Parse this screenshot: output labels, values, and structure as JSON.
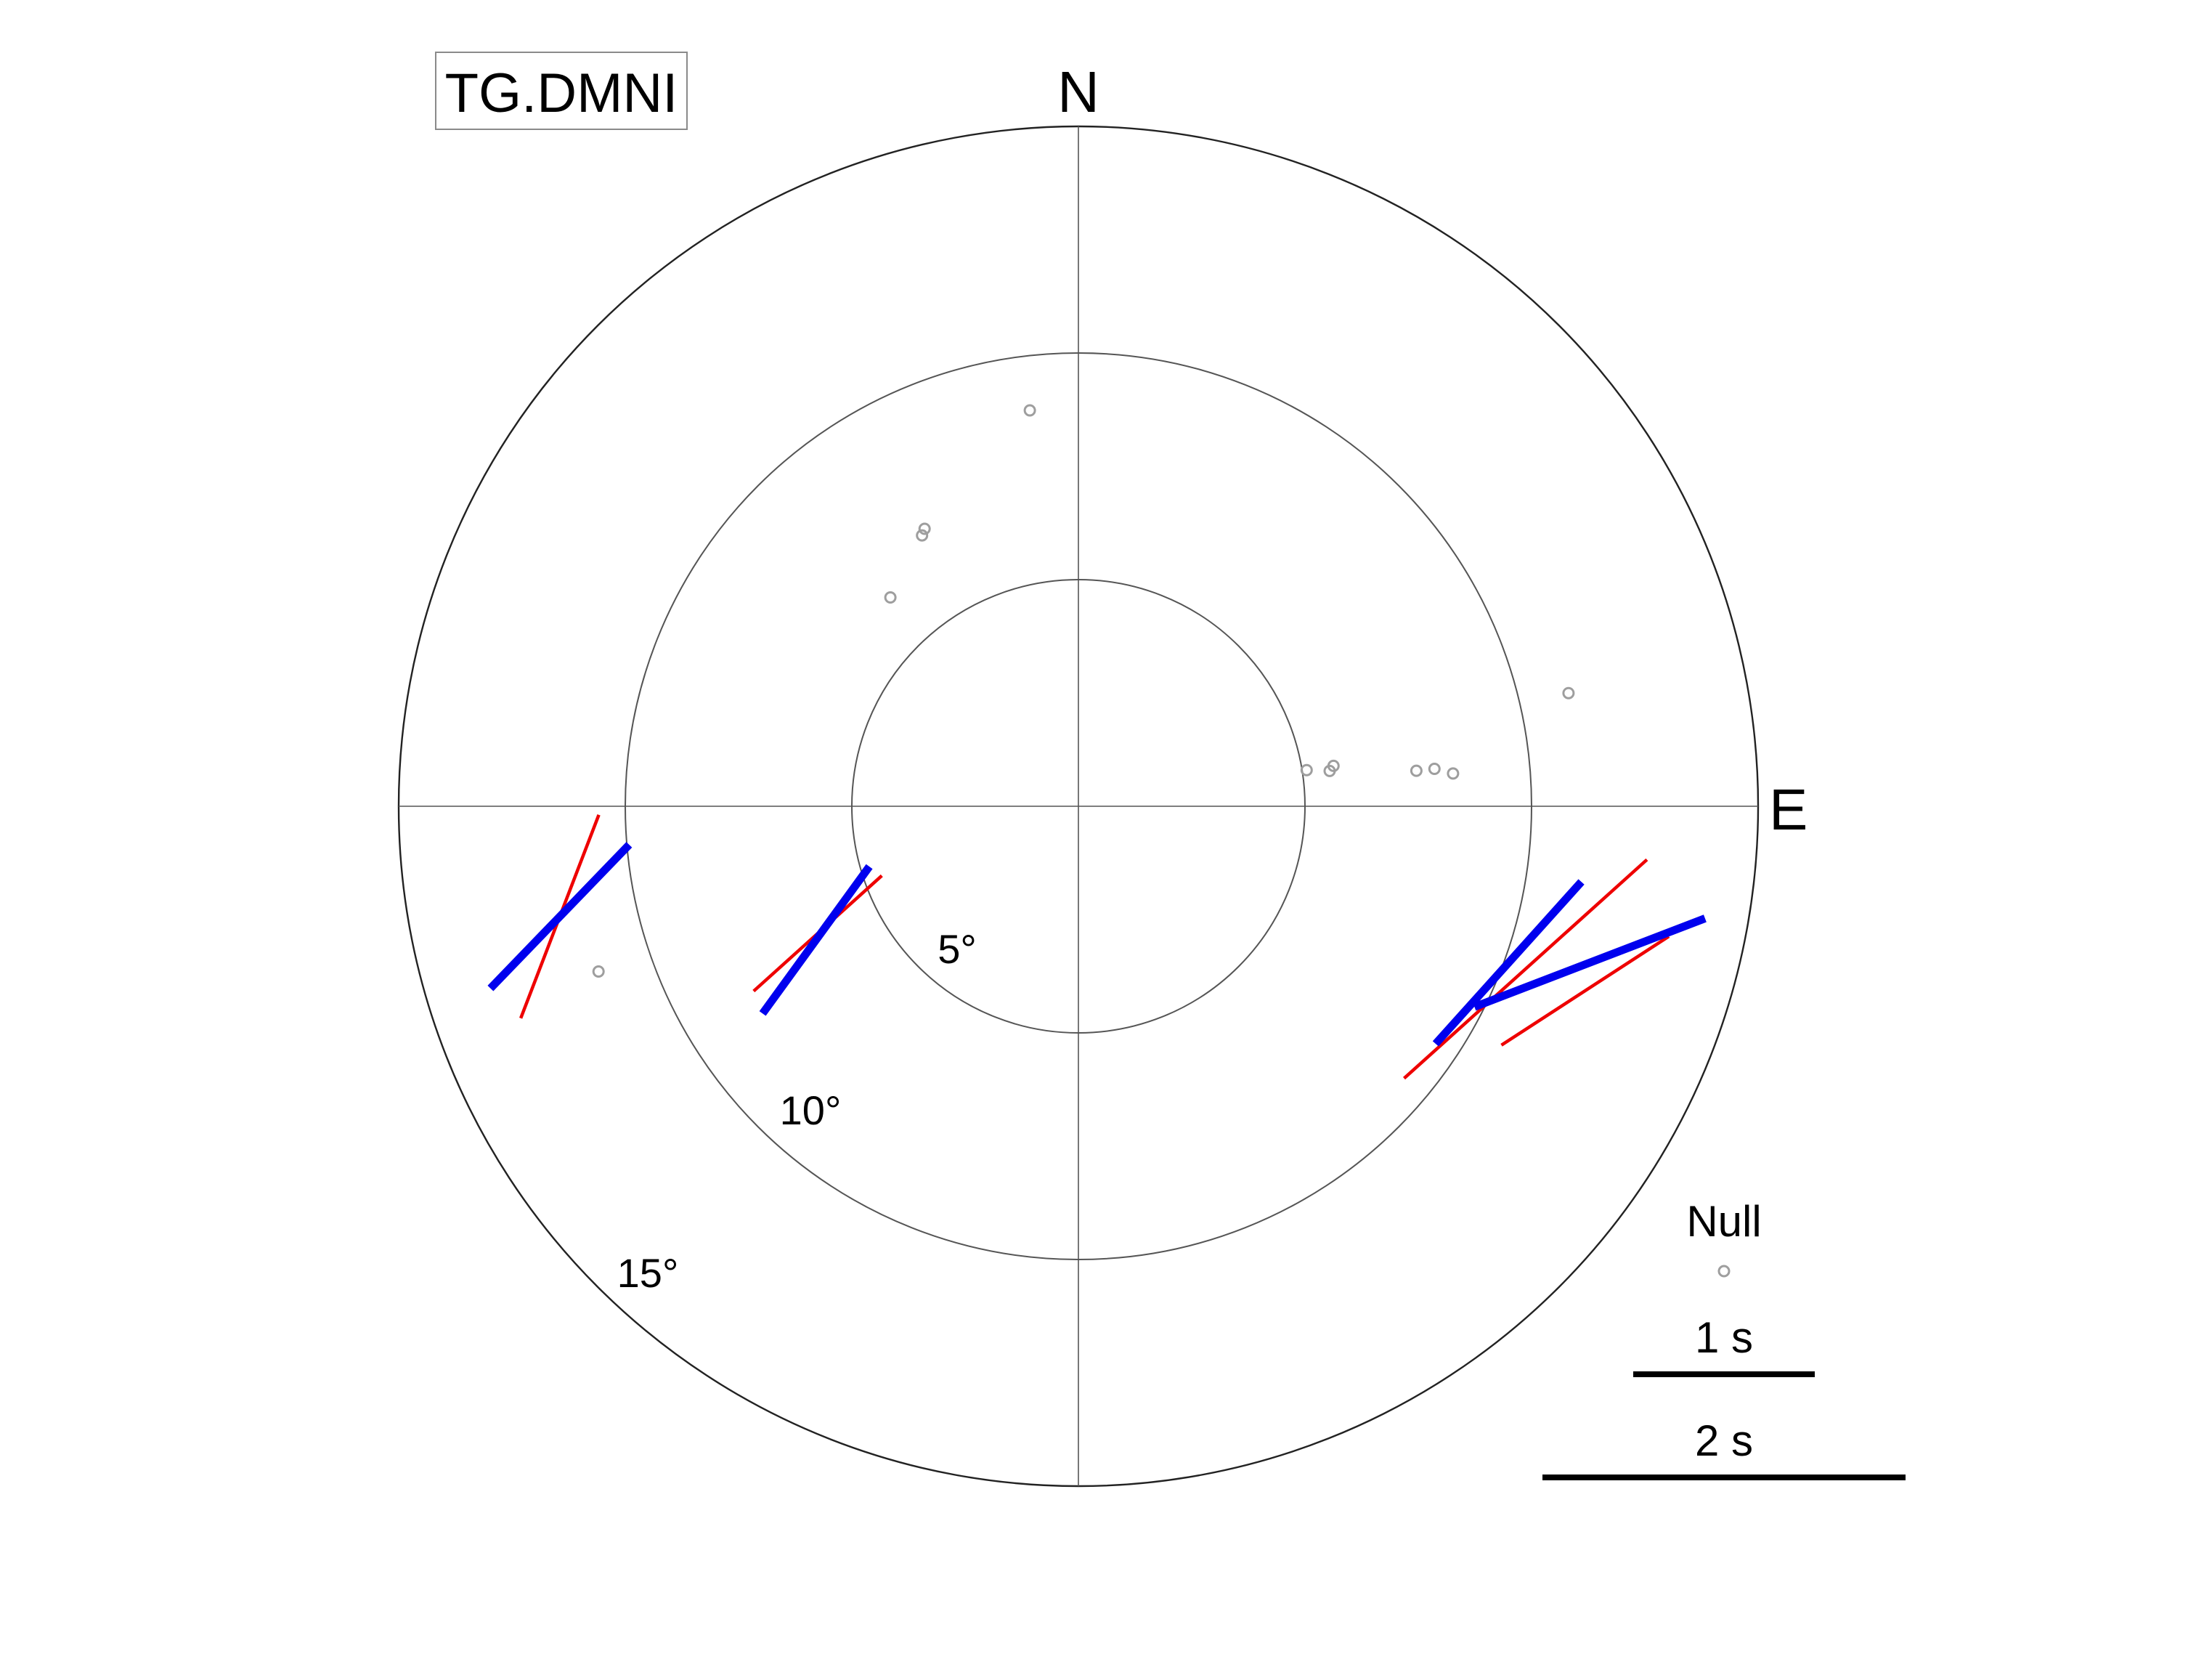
{
  "station": "TG.DMNI",
  "directions": {
    "north": "N",
    "east": "E"
  },
  "rings": [
    {
      "value": 5,
      "label": "5°"
    },
    {
      "value": 10,
      "label": "10°"
    },
    {
      "value": 15,
      "label": "15°"
    }
  ],
  "legend": {
    "null_label": "Null",
    "scale_1": {
      "label": "1 s",
      "seconds": 1
    },
    "scale_2": {
      "label": "2 s",
      "seconds": 2
    }
  },
  "colors": {
    "bar_blue": "#0000ee",
    "bar_red": "#ee0000",
    "null": "#9e9e9e",
    "ring": "#555555"
  },
  "chart_data": {
    "type": "scatter",
    "projection": "polar",
    "radial_axis": {
      "quantity": "distance",
      "units": "deg",
      "max": 15,
      "ticks": [
        5,
        10,
        15
      ]
    },
    "angular_axis": {
      "quantity": "back-azimuth",
      "units": "deg",
      "zero": "N",
      "direction": "clockwise"
    },
    "series": [
      {
        "marker": "open-circle",
        "points": [
          {
            "baz": 353,
            "dist": 8.8
          },
          {
            "baz": 331,
            "dist": 7.0
          },
          {
            "baz": 330,
            "dist": 6.9
          },
          {
            "baz": 318,
            "dist": 6.2
          },
          {
            "baz": 81,
            "dist": 5.1
          },
          {
            "baz": 82,
            "dist": 5.6
          },
          {
            "baz": 81,
            "dist": 5.7
          },
          {
            "baz": 84,
            "dist": 7.5
          },
          {
            "baz": 84,
            "dist": 7.9
          },
          {
            "baz": 85,
            "dist": 8.3
          },
          {
            "baz": 77,
            "dist": 11.1
          },
          {
            "baz": 251,
            "dist": 11.2
          }
        ]
      },
      {
        "marker": "bar",
        "color": "blue",
        "bars": [
          {
            "baz": 258,
            "dist": 11.7,
            "phi": 44,
            "dt": 1.1
          },
          {
            "baz": 243,
            "dist": 6.5,
            "phi": 36,
            "dt": 1.0
          },
          {
            "baz": 110,
            "dist": 10.1,
            "phi": 42,
            "dt": 1.2
          },
          {
            "baz": 107,
            "dist": 11.8,
            "phi": 69,
            "dt": 1.36
          }
        ]
      },
      {
        "marker": "bar",
        "color": "red",
        "bars": [
          {
            "baz": 258,
            "dist": 11.7,
            "phi": 21,
            "dt": 1.2
          },
          {
            "baz": 244,
            "dist": 6.4,
            "phi": 48,
            "dt": 0.95
          },
          {
            "baz": 110,
            "dist": 10.5,
            "phi": 48,
            "dt": 1.8
          },
          {
            "baz": 110,
            "dist": 11.9,
            "phi": 57,
            "dt": 1.1
          }
        ]
      }
    ]
  }
}
